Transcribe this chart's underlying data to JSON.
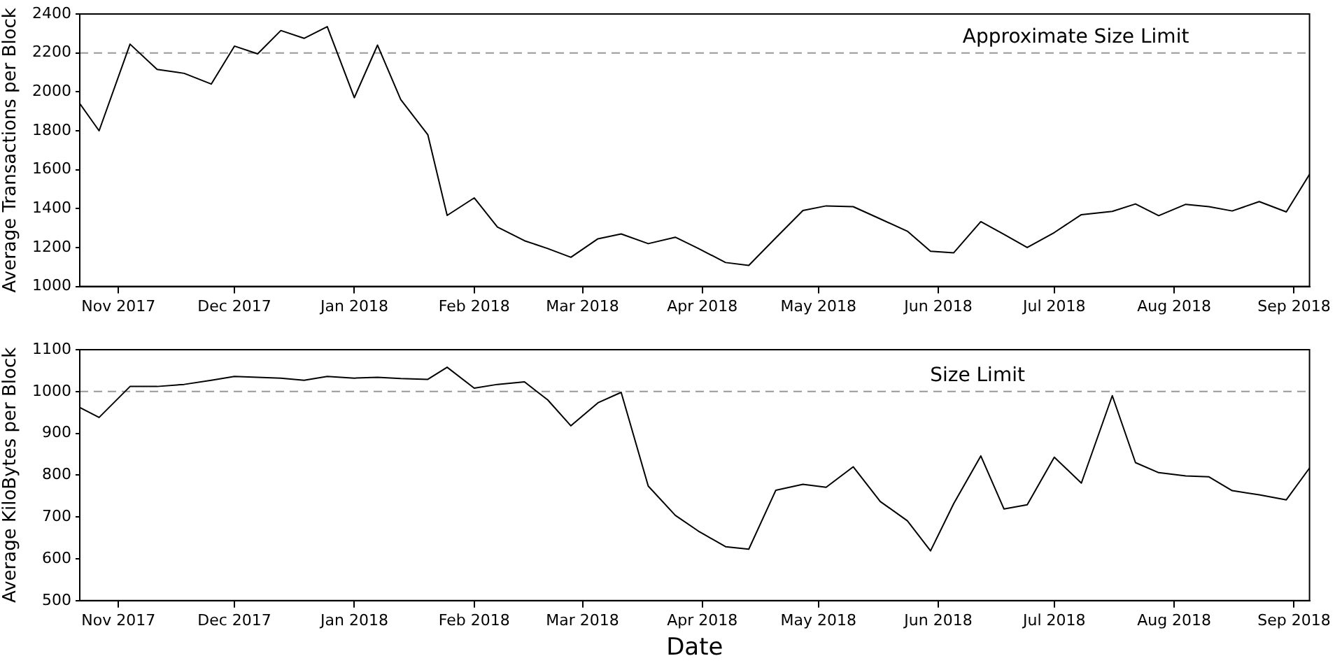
{
  "chart_data": [
    {
      "type": "line",
      "ylabel": "Average Transactions per Block",
      "x": [
        "2017-10-22",
        "2017-10-27",
        "2017-11-04",
        "2017-11-11",
        "2017-11-18",
        "2017-11-25",
        "2017-12-01",
        "2017-12-07",
        "2017-12-13",
        "2017-12-19",
        "2017-12-25",
        "2018-01-01",
        "2018-01-07",
        "2018-01-13",
        "2018-01-20",
        "2018-01-25",
        "2018-02-01",
        "2018-02-07",
        "2018-02-14",
        "2018-02-20",
        "2018-02-26",
        "2018-03-05",
        "2018-03-11",
        "2018-03-18",
        "2018-03-25",
        "2018-03-31",
        "2018-04-07",
        "2018-04-13",
        "2018-04-20",
        "2018-04-27",
        "2018-05-03",
        "2018-05-10",
        "2018-05-17",
        "2018-05-24",
        "2018-05-30",
        "2018-06-05",
        "2018-06-12",
        "2018-06-18",
        "2018-06-24",
        "2018-07-01",
        "2018-07-08",
        "2018-07-16",
        "2018-07-22",
        "2018-07-28",
        "2018-08-04",
        "2018-08-10",
        "2018-08-16",
        "2018-08-23",
        "2018-08-30",
        "2018-09-05"
      ],
      "series": [
        {
          "color": "#000000",
          "values": [
            1940,
            1800,
            2245,
            2115,
            2095,
            2040,
            2235,
            2195,
            2315,
            2275,
            2335,
            1970,
            2240,
            1960,
            1780,
            1365,
            1455,
            1305,
            1235,
            1195,
            1150,
            1245,
            1270,
            1220,
            1253,
            1195,
            1123,
            1108,
            1250,
            1390,
            1414,
            1410,
            1347,
            1284,
            1181,
            1173,
            1333,
            1268,
            1200,
            1277,
            1369,
            1386,
            1424,
            1364,
            1422,
            1410,
            1388,
            1436,
            1383,
            1576
          ]
        }
      ],
      "xlim": [
        "2017-10-22",
        "2018-09-05"
      ],
      "xticks": [
        {
          "value": "2017-11-01",
          "label": "Nov 2017"
        },
        {
          "value": "2017-12-01",
          "label": "Dec 2017"
        },
        {
          "value": "2018-01-01",
          "label": "Jan 2018"
        },
        {
          "value": "2018-02-01",
          "label": "Feb 2018"
        },
        {
          "value": "2018-03-01",
          "label": "Mar 2018"
        },
        {
          "value": "2018-04-01",
          "label": "Apr 2018"
        },
        {
          "value": "2018-05-01",
          "label": "May 2018"
        },
        {
          "value": "2018-06-01",
          "label": "Jun 2018"
        },
        {
          "value": "2018-07-01",
          "label": "Jul 2018"
        },
        {
          "value": "2018-08-01",
          "label": "Aug 2018"
        },
        {
          "value": "2018-09-01",
          "label": "Sep 2018"
        }
      ],
      "ylim": [
        1000,
        2400
      ],
      "yticks": [
        1000,
        1200,
        1400,
        1600,
        1800,
        2000,
        2200,
        2400
      ],
      "ref_lines": [
        {
          "axis": "y",
          "value": 2200,
          "label": "Approximate Size Limit",
          "color": "#999999",
          "line_style": "dashed"
        }
      ],
      "grid": false,
      "legend": false,
      "marker": "none",
      "line_style": "solid"
    },
    {
      "type": "line",
      "xlabel": "Date",
      "ylabel": "Average KiloBytes per Block",
      "x": [
        "2017-10-22",
        "2017-10-27",
        "2017-11-04",
        "2017-11-11",
        "2017-11-18",
        "2017-11-25",
        "2017-12-01",
        "2017-12-07",
        "2017-12-13",
        "2017-12-19",
        "2017-12-25",
        "2018-01-01",
        "2018-01-07",
        "2018-01-13",
        "2018-01-20",
        "2018-01-25",
        "2018-02-01",
        "2018-02-07",
        "2018-02-14",
        "2018-02-20",
        "2018-02-26",
        "2018-03-05",
        "2018-03-11",
        "2018-03-18",
        "2018-03-25",
        "2018-03-31",
        "2018-04-07",
        "2018-04-13",
        "2018-04-20",
        "2018-04-27",
        "2018-05-03",
        "2018-05-10",
        "2018-05-17",
        "2018-05-24",
        "2018-05-30",
        "2018-06-05",
        "2018-06-12",
        "2018-06-18",
        "2018-06-24",
        "2018-07-01",
        "2018-07-08",
        "2018-07-16",
        "2018-07-22",
        "2018-07-28",
        "2018-08-04",
        "2018-08-10",
        "2018-08-16",
        "2018-08-23",
        "2018-08-30",
        "2018-09-05"
      ],
      "series": [
        {
          "color": "#000000",
          "values": [
            962,
            938,
            1012,
            1012,
            1017,
            1027,
            1036,
            1034,
            1032,
            1027,
            1036,
            1032,
            1034,
            1031,
            1029,
            1058,
            1008,
            1017,
            1023,
            980,
            918,
            973,
            998,
            774,
            704,
            666,
            629,
            623,
            764,
            778,
            771,
            820,
            737,
            691,
            619,
            732,
            846,
            719,
            729,
            843,
            781,
            990,
            830,
            806,
            798,
            796,
            763,
            753,
            741,
            817
          ]
        }
      ],
      "xlim": [
        "2017-10-22",
        "2018-09-05"
      ],
      "xticks": [
        {
          "value": "2017-11-01",
          "label": "Nov 2017"
        },
        {
          "value": "2017-12-01",
          "label": "Dec 2017"
        },
        {
          "value": "2018-01-01",
          "label": "Jan 2018"
        },
        {
          "value": "2018-02-01",
          "label": "Feb 2018"
        },
        {
          "value": "2018-03-01",
          "label": "Mar 2018"
        },
        {
          "value": "2018-04-01",
          "label": "Apr 2018"
        },
        {
          "value": "2018-05-01",
          "label": "May 2018"
        },
        {
          "value": "2018-06-01",
          "label": "Jun 2018"
        },
        {
          "value": "2018-07-01",
          "label": "Jul 2018"
        },
        {
          "value": "2018-08-01",
          "label": "Aug 2018"
        },
        {
          "value": "2018-09-01",
          "label": "Sep 2018"
        }
      ],
      "ylim": [
        500,
        1100
      ],
      "yticks": [
        500,
        600,
        700,
        800,
        900,
        1000,
        1100
      ],
      "ref_lines": [
        {
          "axis": "y",
          "value": 1000,
          "label": "Size Limit",
          "color": "#999999",
          "line_style": "dashed"
        }
      ],
      "grid": false,
      "legend": false,
      "marker": "none",
      "line_style": "solid"
    }
  ]
}
